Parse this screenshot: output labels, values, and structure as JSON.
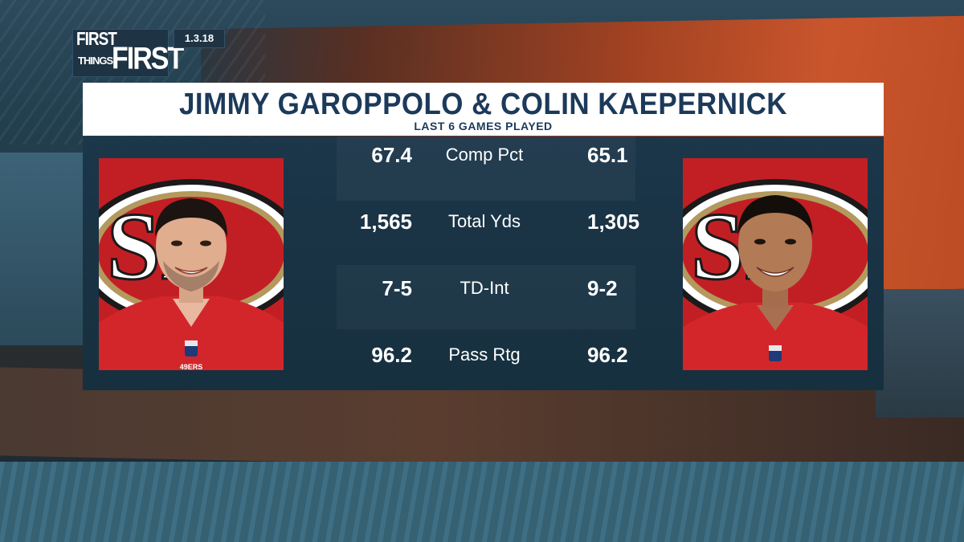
{
  "show": {
    "logo_line1": "FIRST",
    "logo_line2": "THINGS",
    "logo_line3": "FIRST",
    "date": "1.3.18"
  },
  "graphic": {
    "title": "JIMMY GAROPPOLO & COLIN KAEPERNICK",
    "subtitle": "LAST 6 GAMES PLAYED"
  },
  "players": {
    "left": {
      "jersey_text": "49ERS"
    },
    "right": {}
  },
  "stats": [
    {
      "label": "Comp Pct",
      "left": "67.4",
      "right": "65.1"
    },
    {
      "label": "Total Yds",
      "left": "1,565",
      "right": "1,305"
    },
    {
      "label": "TD-Int",
      "left": "7-5",
      "right": "9-2"
    },
    {
      "label": "Pass Rtg",
      "left": "96.2",
      "right": "96.2"
    }
  ],
  "colors": {
    "niners_red": "#c21f25",
    "niners_gold": "#b3995d",
    "title_navy": "#1c3a5a",
    "panel_navy": "#1c364a"
  }
}
